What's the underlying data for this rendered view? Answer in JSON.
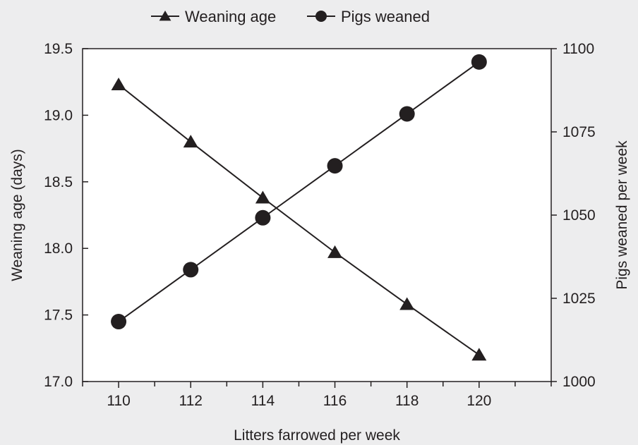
{
  "chart_data": {
    "type": "line",
    "title": "",
    "xlabel": "Litters farrowed per week",
    "ylabel": "Weaning age (days)",
    "y2label": "Pigs weaned per week",
    "xlim": [
      109,
      122
    ],
    "ylim": [
      17.0,
      19.5
    ],
    "y2lim": [
      1000,
      1100
    ],
    "x_ticks": [
      "110",
      "112",
      "114",
      "116",
      "118",
      "120"
    ],
    "y_ticks": [
      "17.0",
      "17.5",
      "18.0",
      "18.5",
      "19.0",
      "19.5"
    ],
    "y2_ticks": [
      "1000",
      "1025",
      "1050",
      "1075",
      "1100"
    ],
    "grid": false,
    "legend_position": "top-center",
    "x": [
      110,
      112,
      114,
      116,
      118,
      120
    ],
    "series": [
      {
        "name": "Weaning age",
        "axis": "left",
        "marker": "triangle",
        "values": [
          19.23,
          18.8,
          18.38,
          17.97,
          17.58,
          17.2
        ]
      },
      {
        "name": "Pigs weaned",
        "axis": "right",
        "marker": "circle",
        "values": [
          1018,
          1033.6,
          1049.2,
          1064.8,
          1080.4,
          1096
        ]
      }
    ],
    "colors": {
      "background": "#ededee",
      "plot_background": "#ffffff",
      "ink": "#231f20"
    }
  }
}
